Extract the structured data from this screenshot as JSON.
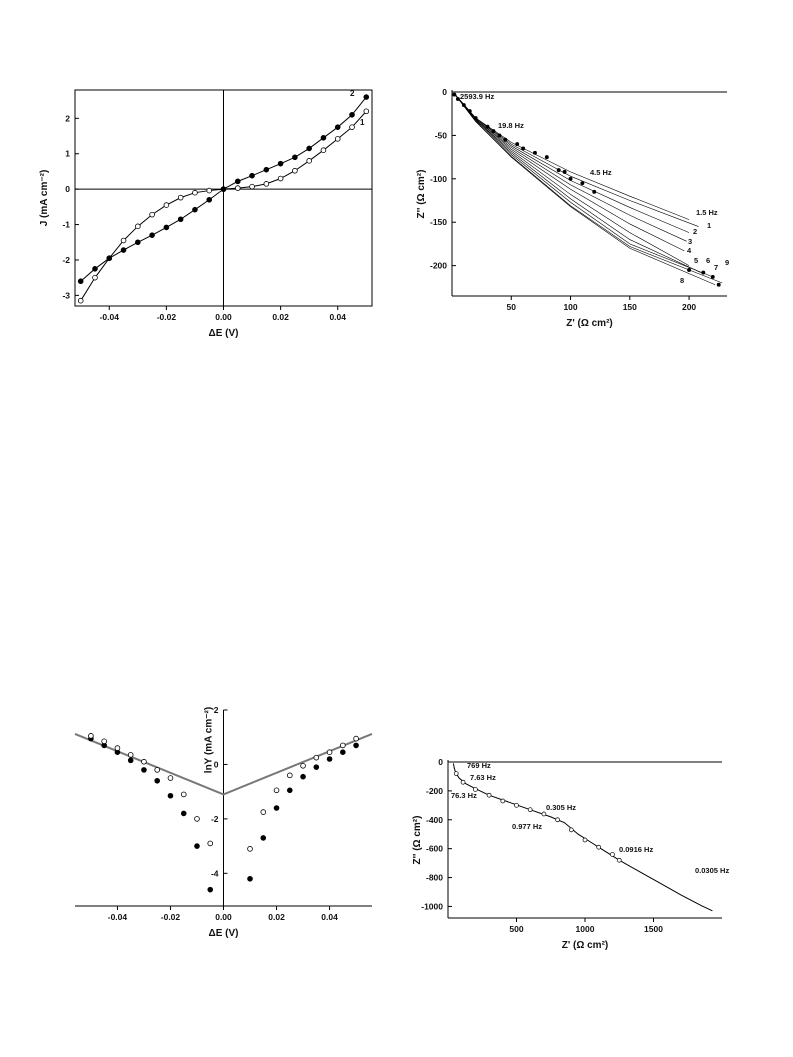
{
  "chart_data": [
    {
      "type": "line",
      "xlabel": "ΔE (V)",
      "ylabel": "J (mA cm⁻²)",
      "xlim": [
        -0.052,
        0.052
      ],
      "ylim": [
        -3.3,
        2.8
      ],
      "xticks": [
        -0.04,
        -0.02,
        0.0,
        0.02,
        0.04
      ],
      "xtick_labels": [
        "-0.04",
        "-0.02",
        "0.00",
        "0.02",
        "0.04"
      ],
      "yticks": [
        -3,
        -2,
        -1,
        0,
        1,
        2
      ],
      "ytick_labels": [
        "-3",
        "-2",
        "-1",
        "0",
        "1",
        "2"
      ],
      "series": [
        {
          "name": "1",
          "marker": "open-circle",
          "points": [
            [
              -0.05,
              -3.15
            ],
            [
              -0.045,
              -2.5
            ],
            [
              -0.04,
              -1.95
            ],
            [
              -0.035,
              -1.45
            ],
            [
              -0.03,
              -1.05
            ],
            [
              -0.025,
              -0.72
            ],
            [
              -0.02,
              -0.45
            ],
            [
              -0.015,
              -0.24
            ],
            [
              -0.01,
              -0.1
            ],
            [
              -0.005,
              -0.04
            ],
            [
              0.0,
              0.0
            ],
            [
              0.005,
              0.03
            ],
            [
              0.01,
              0.07
            ],
            [
              0.015,
              0.15
            ],
            [
              0.02,
              0.3
            ],
            [
              0.025,
              0.52
            ],
            [
              0.03,
              0.8
            ],
            [
              0.035,
              1.1
            ],
            [
              0.04,
              1.42
            ],
            [
              0.045,
              1.75
            ],
            [
              0.05,
              2.2
            ]
          ]
        },
        {
          "name": "2",
          "marker": "filled-circle",
          "points": [
            [
              -0.05,
              -2.6
            ],
            [
              -0.045,
              -2.25
            ],
            [
              -0.04,
              -1.95
            ],
            [
              -0.035,
              -1.72
            ],
            [
              -0.03,
              -1.5
            ],
            [
              -0.025,
              -1.3
            ],
            [
              -0.02,
              -1.08
            ],
            [
              -0.015,
              -0.85
            ],
            [
              -0.01,
              -0.58
            ],
            [
              -0.005,
              -0.3
            ],
            [
              0.0,
              0.0
            ],
            [
              0.005,
              0.22
            ],
            [
              0.01,
              0.38
            ],
            [
              0.015,
              0.55
            ],
            [
              0.02,
              0.72
            ],
            [
              0.025,
              0.9
            ],
            [
              0.03,
              1.15
            ],
            [
              0.035,
              1.45
            ],
            [
              0.04,
              1.75
            ],
            [
              0.045,
              2.1
            ],
            [
              0.05,
              2.6
            ]
          ]
        }
      ]
    },
    {
      "type": "scatter",
      "xlabel": "Z' (Ω cm²)",
      "ylabel": "Z'' (Ω cm²)",
      "xlim": [
        0,
        232
      ],
      "ylim": [
        -235,
        0
      ],
      "xticks": [
        50,
        100,
        150,
        200
      ],
      "xtick_labels": [
        "50",
        "100",
        "150",
        "200"
      ],
      "yticks": [
        0,
        -50,
        -100,
        -150,
        -200
      ],
      "ytick_labels": [
        "0",
        "-50",
        "-100",
        "-150",
        "-200"
      ],
      "annotations": [
        "2593.9 Hz",
        "19.8 Hz",
        "4.5 Hz",
        "1.5 Hz",
        "1",
        "2",
        "3",
        "4",
        "5",
        "6",
        "7",
        "8",
        "9"
      ],
      "series": [
        {
          "name": "1.5 Hz",
          "points": [
            [
              2,
              -2
            ],
            [
              20,
              -30
            ],
            [
              50,
              -58
            ],
            [
              100,
              -92
            ],
            [
              150,
              -120
            ],
            [
              200,
              -147
            ]
          ]
        },
        {
          "name": "1",
          "points": [
            [
              2,
              -2
            ],
            [
              20,
              -30
            ],
            [
              50,
              -60
            ],
            [
              100,
              -97
            ],
            [
              150,
              -125
            ],
            [
              208,
              -155
            ]
          ]
        },
        {
          "name": "2",
          "points": [
            [
              2,
              -2
            ],
            [
              20,
              -30
            ],
            [
              50,
              -62
            ],
            [
              100,
              -102
            ],
            [
              150,
              -133
            ],
            [
              200,
              -162
            ]
          ]
        },
        {
          "name": "3",
          "points": [
            [
              2,
              -2
            ],
            [
              20,
              -31
            ],
            [
              50,
              -64
            ],
            [
              100,
              -107
            ],
            [
              150,
              -142
            ],
            [
              198,
              -172
            ]
          ]
        },
        {
          "name": "4",
          "points": [
            [
              2,
              -2
            ],
            [
              20,
              -31
            ],
            [
              50,
              -66
            ],
            [
              100,
              -112
            ],
            [
              150,
              -152
            ],
            [
              196,
              -183
            ]
          ]
        },
        {
          "name": "5",
          "points": [
            [
              2,
              -2
            ],
            [
              20,
              -32
            ],
            [
              50,
              -68
            ],
            [
              100,
              -118
            ],
            [
              150,
              -162
            ],
            [
              200,
              -200
            ]
          ]
        },
        {
          "name": "6",
          "points": [
            [
              2,
              -2
            ],
            [
              20,
              -32
            ],
            [
              50,
              -70
            ],
            [
              100,
              -123
            ],
            [
              150,
              -170
            ],
            [
              210,
              -208
            ]
          ]
        },
        {
          "name": "7",
          "points": [
            [
              2,
              -2
            ],
            [
              20,
              -33
            ],
            [
              50,
              -72
            ],
            [
              100,
              -127
            ],
            [
              150,
              -175
            ],
            [
              220,
              -213
            ]
          ]
        },
        {
          "name": "8",
          "points": [
            [
              2,
              -2
            ],
            [
              20,
              -34
            ],
            [
              50,
              -75
            ],
            [
              100,
              -132
            ],
            [
              150,
              -180
            ],
            [
              222,
              -222
            ]
          ]
        },
        {
          "name": "9",
          "points": [
            [
              2,
              -2
            ],
            [
              20,
              -34
            ],
            [
              50,
              -74
            ],
            [
              100,
              -131
            ],
            [
              150,
              -178
            ],
            [
              228,
              -220
            ]
          ]
        }
      ],
      "markers": [
        [
          2,
          -3
        ],
        [
          5,
          -8
        ],
        [
          10,
          -15
        ],
        [
          15,
          -22
        ],
        [
          20,
          -30
        ],
        [
          30,
          -40
        ],
        [
          35,
          -45
        ],
        [
          40,
          -50
        ],
        [
          45,
          -55
        ],
        [
          55,
          -60
        ],
        [
          60,
          -65
        ],
        [
          70,
          -70
        ],
        [
          80,
          -75
        ],
        [
          90,
          -90
        ],
        [
          95,
          -92
        ],
        [
          100,
          -100
        ],
        [
          110,
          -105
        ],
        [
          120,
          -115
        ],
        [
          200,
          -205
        ],
        [
          212,
          -208
        ],
        [
          220,
          -213
        ],
        [
          225,
          -222
        ]
      ]
    },
    {
      "type": "scatter",
      "xlabel": "ΔE  (V)",
      "ylabel": "lnY (mA cm⁻²)",
      "xlim": [
        -0.056,
        0.056
      ],
      "ylim": [
        -5.2,
        2.0
      ],
      "xticks": [
        -0.04,
        -0.02,
        0.0,
        0.02,
        0.04
      ],
      "xtick_labels": [
        "-0.04",
        "-0.02",
        "0.00",
        "0.02",
        "0.04"
      ],
      "yticks": [
        2,
        0,
        -2,
        -4
      ],
      "ytick_labels": [
        "2",
        "0",
        "-2",
        "-4"
      ],
      "lines": [
        [
          [
            -0.056,
            1.12
          ],
          [
            0.0,
            -1.1
          ],
          [
            0.056,
            1.12
          ]
        ]
      ],
      "series": [
        {
          "name": "filled",
          "marker": "filled-circle",
          "points": [
            [
              -0.05,
              0.95
            ],
            [
              -0.045,
              0.7
            ],
            [
              -0.04,
              0.45
            ],
            [
              -0.035,
              0.15
            ],
            [
              -0.03,
              -0.2
            ],
            [
              -0.025,
              -0.6
            ],
            [
              -0.02,
              -1.15
            ],
            [
              -0.015,
              -1.8
            ],
            [
              -0.01,
              -3.0
            ],
            [
              -0.005,
              -4.6
            ],
            [
              0.01,
              -4.2
            ],
            [
              0.015,
              -2.7
            ],
            [
              0.02,
              -1.6
            ],
            [
              0.025,
              -0.95
            ],
            [
              0.03,
              -0.45
            ],
            [
              0.035,
              -0.1
            ],
            [
              0.04,
              0.2
            ],
            [
              0.045,
              0.45
            ],
            [
              0.05,
              0.7
            ]
          ]
        },
        {
          "name": "open",
          "marker": "open-circle",
          "points": [
            [
              -0.05,
              1.05
            ],
            [
              -0.045,
              0.85
            ],
            [
              -0.04,
              0.6
            ],
            [
              -0.035,
              0.35
            ],
            [
              -0.03,
              0.1
            ],
            [
              -0.025,
              -0.2
            ],
            [
              -0.02,
              -0.5
            ],
            [
              -0.015,
              -1.1
            ],
            [
              -0.01,
              -2.0
            ],
            [
              -0.005,
              -2.9
            ],
            [
              0.01,
              -3.1
            ],
            [
              0.015,
              -1.75
            ],
            [
              0.02,
              -0.95
            ],
            [
              0.025,
              -0.4
            ],
            [
              0.03,
              -0.05
            ],
            [
              0.035,
              0.25
            ],
            [
              0.04,
              0.45
            ],
            [
              0.045,
              0.7
            ],
            [
              0.05,
              0.95
            ]
          ]
        }
      ]
    },
    {
      "type": "line",
      "xlabel": "Z' (Ω cm²)",
      "ylabel": "Z'' (Ω cm²)",
      "xlim": [
        0,
        2000
      ],
      "ylim": [
        -1080,
        0
      ],
      "xticks": [
        500,
        1000,
        1500
      ],
      "xtick_labels": [
        "500",
        "1000",
        "1500"
      ],
      "yticks": [
        0,
        -200,
        -400,
        -600,
        -800,
        -1000
      ],
      "ytick_labels": [
        "0",
        "-200",
        "-400",
        "-600",
        "-800",
        "-1000"
      ],
      "annotations": [
        "769 Hz",
        "76.3 Hz",
        "7.63 Hz",
        "0.977 Hz",
        "0.305 Hz",
        "0.0916 Hz",
        "0.0305 Hz"
      ],
      "series": [
        {
          "name": "curve",
          "points": [
            [
              40,
              -10
            ],
            [
              45,
              -40
            ],
            [
              55,
              -70
            ],
            [
              80,
              -110
            ],
            [
              130,
              -150
            ],
            [
              200,
              -185
            ],
            [
              300,
              -230
            ],
            [
              450,
              -280
            ],
            [
              600,
              -330
            ],
            [
              750,
              -380
            ],
            [
              850,
              -420
            ],
            [
              950,
              -500
            ],
            [
              1050,
              -560
            ],
            [
              1150,
              -620
            ],
            [
              1250,
              -680
            ],
            [
              1400,
              -760
            ],
            [
              1550,
              -840
            ],
            [
              1700,
              -920
            ],
            [
              1850,
              -995
            ],
            [
              1930,
              -1030
            ]
          ]
        }
      ],
      "markers": [
        [
          60,
          -80
        ],
        [
          110,
          -140
        ],
        [
          200,
          -190
        ],
        [
          300,
          -230
        ],
        [
          400,
          -270
        ],
        [
          500,
          -300
        ],
        [
          600,
          -330
        ],
        [
          700,
          -360
        ],
        [
          800,
          -400
        ],
        [
          900,
          -470
        ],
        [
          1000,
          -540
        ],
        [
          1100,
          -590
        ],
        [
          1200,
          -640
        ],
        [
          1250,
          -680
        ]
      ]
    }
  ]
}
